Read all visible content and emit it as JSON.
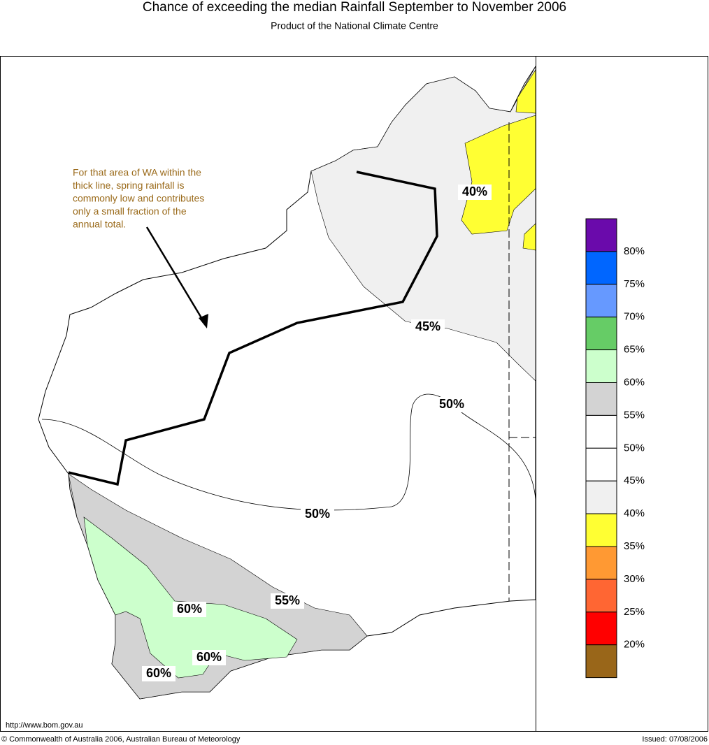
{
  "header": {
    "title": "Chance of exceeding the median Rainfall September to November 2006",
    "subtitle": "Product of the National Climate Centre"
  },
  "annotation": [
    "For that area of WA within the",
    "thick line, spring rainfall is",
    "commonly low and contributes",
    "only a small fraction of the",
    "annual total."
  ],
  "contour_labels": [
    "40%",
    "45%",
    "50%",
    "50%",
    "55%",
    "60%",
    "60%",
    "60%"
  ],
  "legend": {
    "colors": [
      "#6a0aab",
      "#0066ff",
      "#6699ff",
      "#66cc66",
      "#ccffcc",
      "#d3d3d3",
      "#ffffff",
      "#ffffff",
      "#f0f0f0",
      "#ffff33",
      "#ff9933",
      "#ff6633",
      "#ff0000",
      "#996619"
    ],
    "labels": [
      "80%",
      "75%",
      "70%",
      "65%",
      "60%",
      "55%",
      "50%",
      "45%",
      "40%",
      "35%",
      "30%",
      "25%",
      "20%"
    ]
  },
  "footer": {
    "url": "http://www.bom.gov.au",
    "copyright": "© Commonwealth of Australia 2006, Australian Bureau of Meteorology",
    "issued": "Issued: 07/08/2006"
  }
}
